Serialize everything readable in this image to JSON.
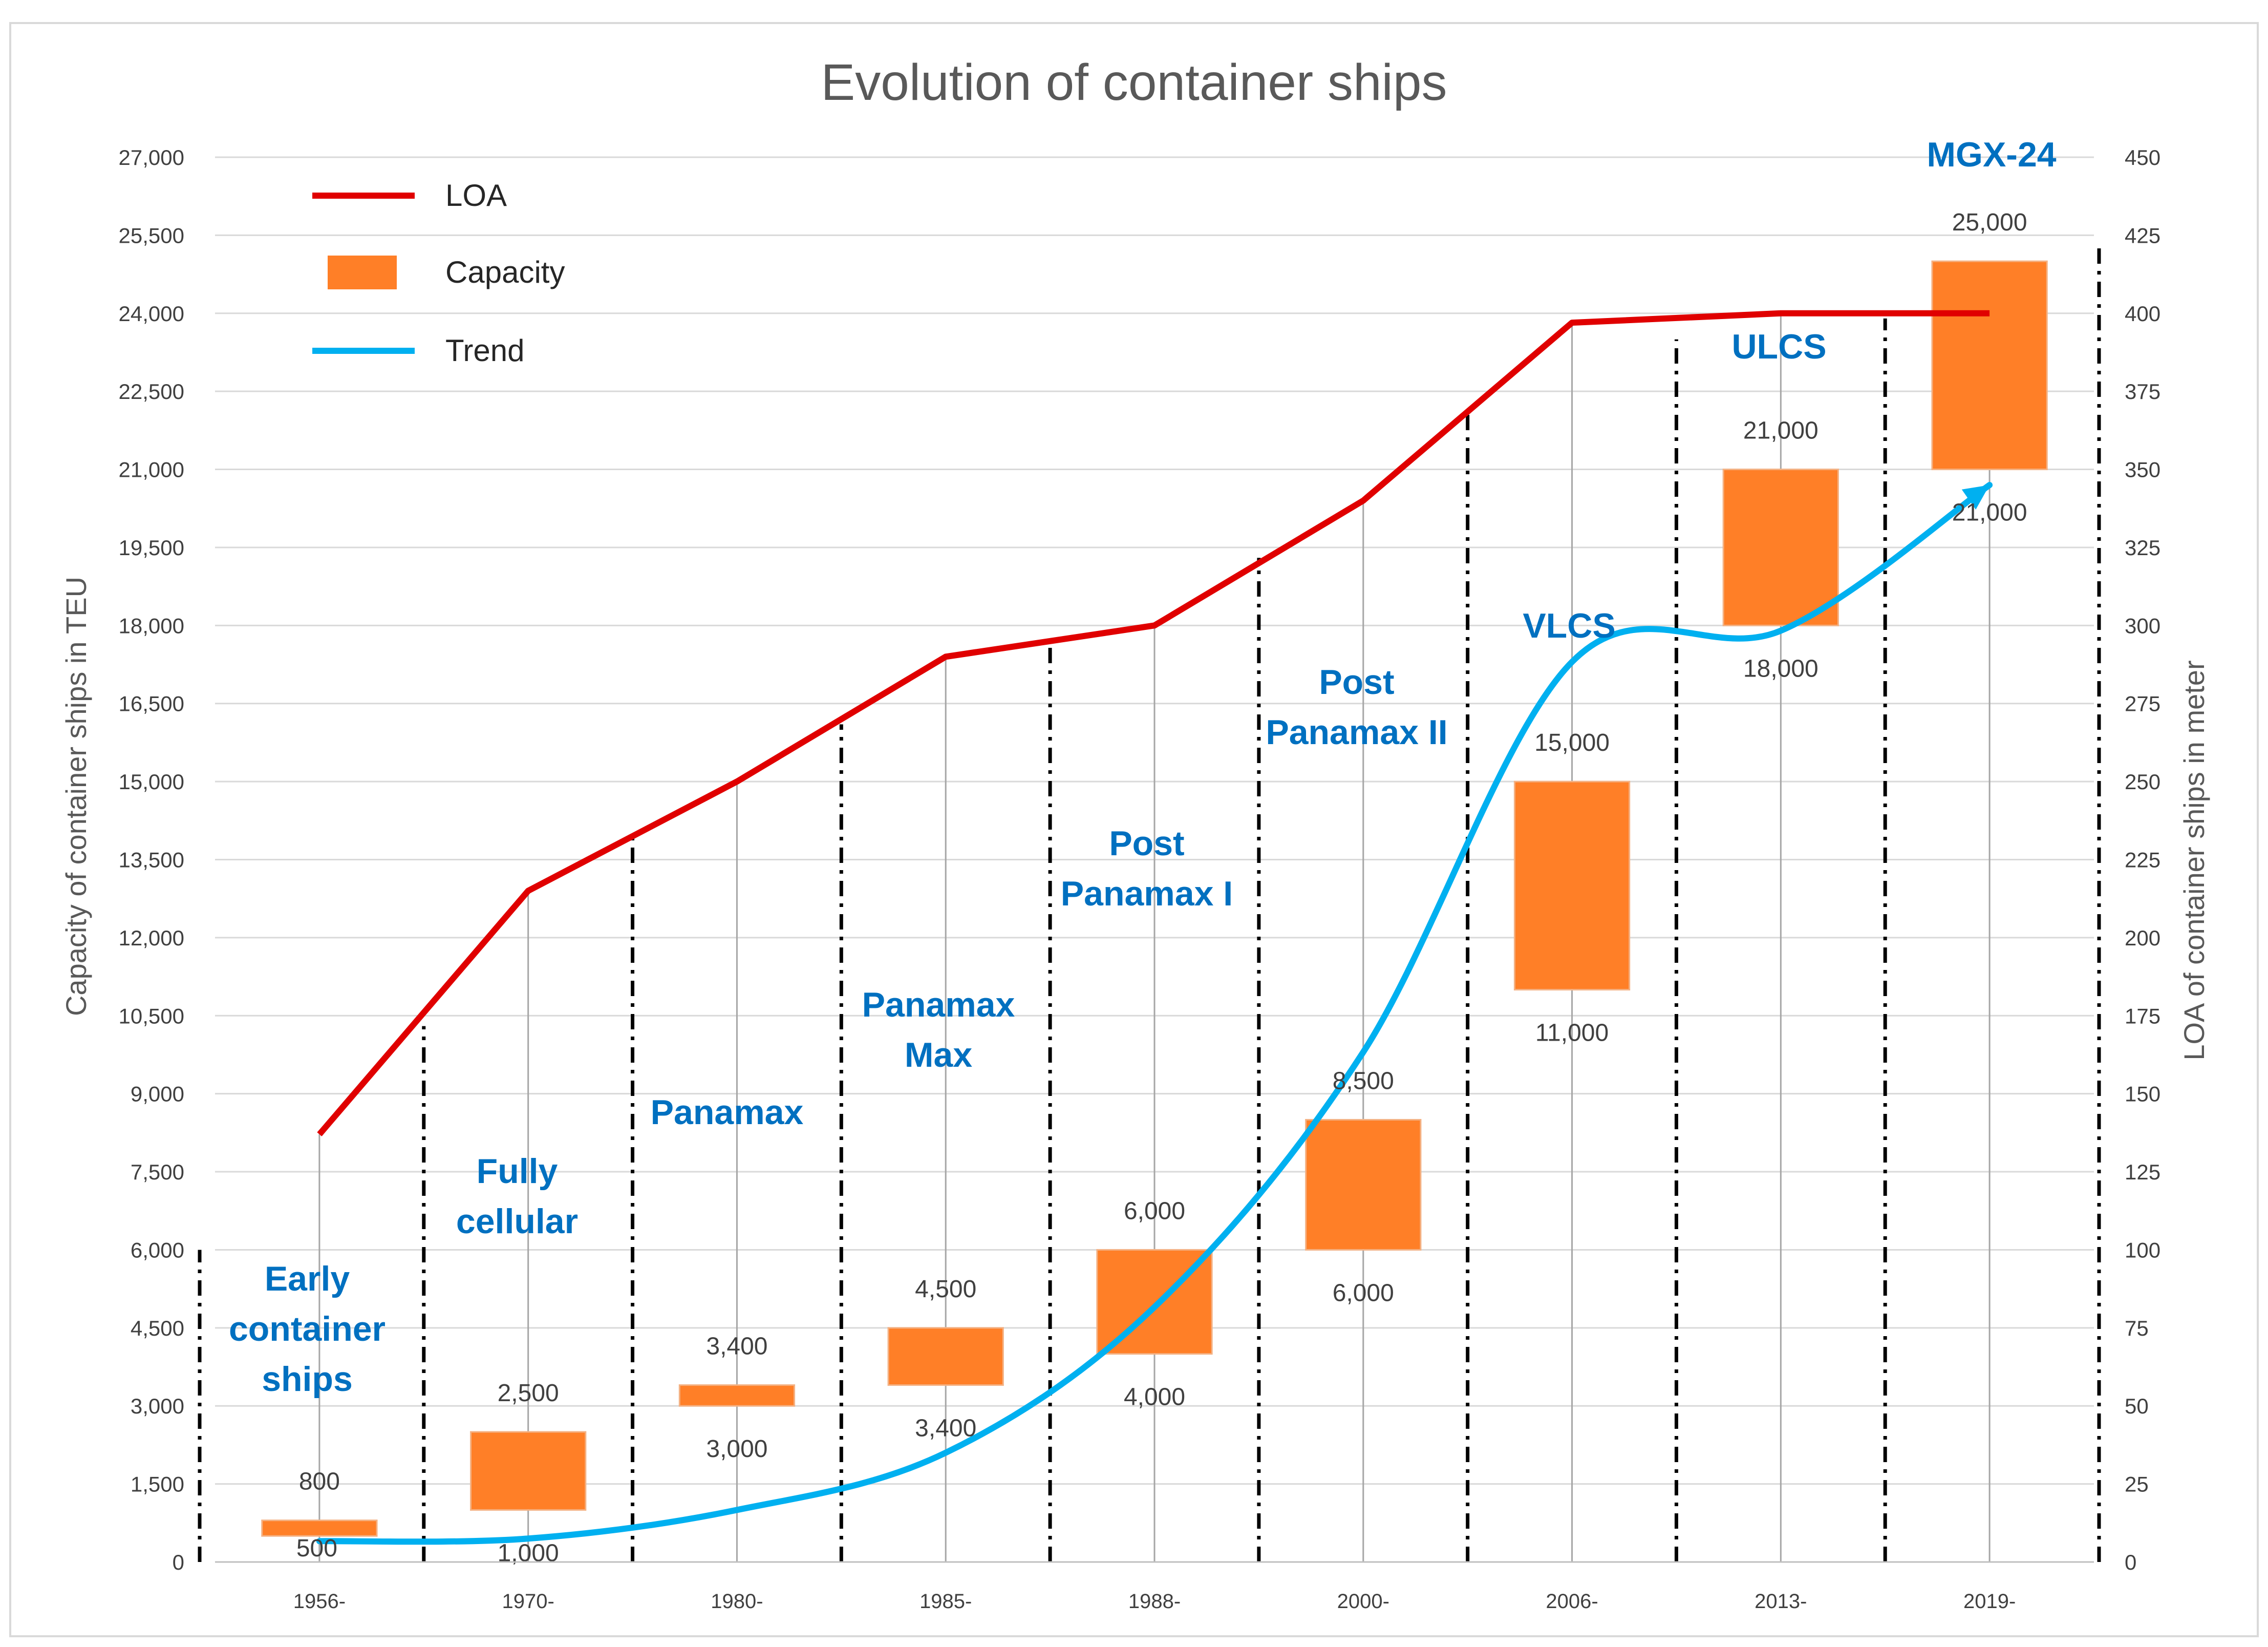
{
  "chart_data": {
    "type": "bar",
    "title": "Evolution of container ships",
    "ylabel": "Capacity of container ships in TEU",
    "y2label": "LOA of container ships in meter",
    "ylim": [
      0,
      27000
    ],
    "y2lim": [
      0,
      450
    ],
    "yticks": [
      "0",
      "1,500",
      "3,000",
      "4,500",
      "6,000",
      "7,500",
      "9,000",
      "10,500",
      "12,000",
      "13,500",
      "15,000",
      "16,500",
      "18,000",
      "19,500",
      "21,000",
      "22,500",
      "24,000",
      "25,500",
      "27,000"
    ],
    "y2ticks": [
      "0",
      "25",
      "50",
      "75",
      "100",
      "125",
      "150",
      "175",
      "200",
      "225",
      "250",
      "275",
      "300",
      "325",
      "350",
      "375",
      "400",
      "425",
      "450"
    ],
    "categories": [
      "1956-",
      "1970-",
      "1980-",
      "1985-",
      "1988-",
      "2000-",
      "2006-",
      "2013-",
      "2019-"
    ],
    "legend": {
      "placement": "top-left",
      "items": [
        {
          "label": "LOA",
          "color": "#e00000",
          "kind": "line"
        },
        {
          "label": "Capacity",
          "color": "#ff7f27",
          "kind": "box"
        },
        {
          "label": "Trend",
          "color": "#00b0f0",
          "kind": "line"
        }
      ]
    },
    "capacity": {
      "name": "Capacity",
      "low": [
        500,
        1000,
        3000,
        3400,
        4000,
        6000,
        11000,
        18000,
        21000
      ],
      "high": [
        800,
        2500,
        3400,
        4500,
        6000,
        8500,
        15000,
        21000,
        25000
      ],
      "low_labels": [
        "500",
        "1,000",
        "3,000",
        "3,400",
        "4,000",
        "6,000",
        "11,000",
        "18,000",
        "21,000"
      ],
      "high_labels": [
        "800",
        "2,500",
        "3,400",
        "4,500",
        "6,000",
        "8,500",
        "15,000",
        "21,000",
        "25,000"
      ]
    },
    "loa": {
      "name": "LOA",
      "values": [
        137,
        215,
        250,
        290,
        300,
        340,
        397,
        400,
        400
      ]
    },
    "trend": {
      "name": "Trend",
      "values": [
        400,
        450,
        1000,
        2100,
        4900,
        9800,
        17300,
        17900,
        20700
      ]
    },
    "class_labels": [
      "Early container ships",
      "Fully cellular",
      "Panamax",
      "Panamax Max",
      "Post Panamax I",
      "Post Panamax II",
      "VLCS",
      "ULCS",
      "MGX-24"
    ],
    "grid": true
  },
  "colors": {
    "loa": "#e00000",
    "capacity": "#ff7f27",
    "trend": "#00b0f0",
    "class_label": "#0070c0",
    "separator": "#000000",
    "gridline": "#d9d9d9"
  }
}
